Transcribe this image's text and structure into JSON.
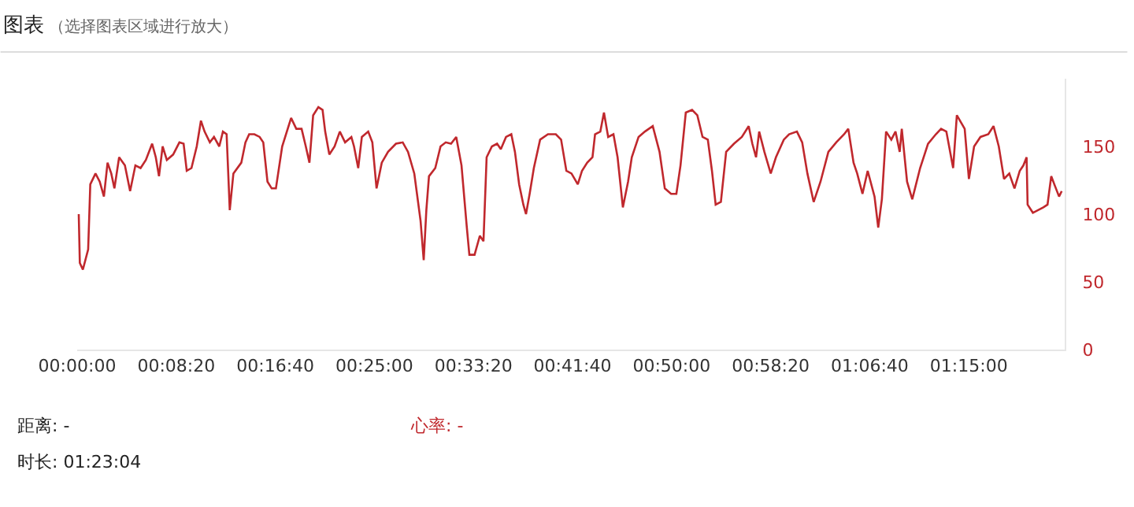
{
  "chart_data": {
    "type": "line",
    "title": "图表",
    "subtitle": "（选择图表区域进行放大）",
    "annotations": [
      "距离: -",
      "时长: 01:23:04",
      "心率: -"
    ],
    "xlim": [
      0,
      1.3844
    ],
    "ylim": [
      0,
      200
    ],
    "yticks": [
      0,
      50,
      100,
      150
    ],
    "xticks": [
      {
        "value": 0,
        "label": "00:00:00"
      },
      {
        "value": 0.1389,
        "label": "00:08:20"
      },
      {
        "value": 0.2778,
        "label": "00:16:40"
      },
      {
        "value": 0.4167,
        "label": "00:25:00"
      },
      {
        "value": 0.5556,
        "label": "00:33:20"
      },
      {
        "value": 0.6944,
        "label": "00:41:40"
      },
      {
        "value": 0.8333,
        "label": "00:50:00"
      },
      {
        "value": 0.9722,
        "label": "00:58:20"
      },
      {
        "value": 1.1111,
        "label": "01:06:40"
      },
      {
        "value": 1.25,
        "label": "01:15:00"
      }
    ],
    "grid": false,
    "marker": "none",
    "line_style": "solid",
    "series": [
      {
        "color": "#c0282d",
        "x": [
          0.0022,
          0.0037,
          0.008,
          0.0154,
          0.0184,
          0.0257,
          0.0316,
          0.0375,
          0.0426,
          0.0478,
          0.0522,
          0.0588,
          0.0669,
          0.0742,
          0.0816,
          0.0889,
          0.0963,
          0.1051,
          0.1102,
          0.1147,
          0.1198,
          0.1257,
          0.1345,
          0.1433,
          0.1492,
          0.1536,
          0.1602,
          0.1676,
          0.1735,
          0.1786,
          0.186,
          0.1918,
          0.1992,
          0.2043,
          0.2095,
          0.2139,
          0.219,
          0.2301,
          0.2359,
          0.2411,
          0.2484,
          0.2558,
          0.2609,
          0.2668,
          0.2727,
          0.2786,
          0.2874,
          0.2999,
          0.3072,
          0.3146,
          0.3205,
          0.3256,
          0.3308,
          0.3381,
          0.344,
          0.3477,
          0.3535,
          0.3609,
          0.3682,
          0.3756,
          0.3844,
          0.3881,
          0.394,
          0.3991,
          0.408,
          0.4138,
          0.4197,
          0.427,
          0.4358,
          0.4469,
          0.4564,
          0.4638,
          0.4726,
          0.4814,
          0.4858,
          0.4895,
          0.4932,
          0.502,
          0.5094,
          0.5167,
          0.5241,
          0.5314,
          0.5388,
          0.5461,
          0.5498,
          0.5571,
          0.5645,
          0.5696,
          0.574,
          0.5814,
          0.5887,
          0.5939,
          0.6012,
          0.6086,
          0.6137,
          0.6196,
          0.6255,
          0.6292,
          0.6343,
          0.6402,
          0.649,
          0.66,
          0.671,
          0.6784,
          0.6858,
          0.693,
          0.7018,
          0.7077,
          0.715,
          0.7224,
          0.726,
          0.7334,
          0.7385,
          0.7444,
          0.7518,
          0.7576,
          0.765,
          0.7723,
          0.7775,
          0.787,
          0.7959,
          0.8069,
          0.8164,
          0.8238,
          0.8326,
          0.84,
          0.8458,
          0.8532,
          0.862,
          0.8694,
          0.8767,
          0.8841,
          0.8899,
          0.8951,
          0.9024,
          0.9098,
          0.9208,
          0.9318,
          0.9414,
          0.9465,
          0.9517,
          0.9561,
          0.9634,
          0.9723,
          0.9796,
          0.9906,
          0.998,
          1.009,
          1.0164,
          1.0237,
          1.0325,
          1.0421,
          1.0531,
          1.0641,
          1.0752,
          1.081,
          1.0884,
          1.0935,
          1.1009,
          1.1082,
          1.1178,
          1.123,
          1.1281,
          1.134,
          1.1413,
          1.1472,
          1.1531,
          1.156,
          1.1634,
          1.1707,
          1.1817,
          1.1928,
          1.2038,
          1.2111,
          1.2185,
          1.228,
          1.2332,
          1.2442,
          1.2501,
          1.2574,
          1.2663,
          1.2773,
          1.2846,
          1.292,
          1.2993,
          1.3067,
          1.314,
          1.3214,
          1.3265,
          1.331,
          1.3324,
          1.3398,
          1.3471,
          1.3545,
          1.3603,
          1.3655,
          1.3706,
          1.3765,
          1.3802
        ],
        "values": [
          100,
          64,
          59,
          74,
          122,
          130,
          124,
          113,
          138,
          130,
          119,
          142,
          136,
          117,
          136,
          134,
          140,
          152,
          142,
          128,
          150,
          140,
          144,
          153,
          152,
          132,
          134,
          150,
          169,
          161,
          153,
          157,
          150,
          161,
          159,
          103,
          130,
          138,
          153,
          159,
          159,
          157,
          153,
          124,
          119,
          119,
          150,
          171,
          163,
          163,
          150,
          138,
          173,
          179,
          177,
          161,
          144,
          150,
          161,
          153,
          157,
          150,
          134,
          157,
          161,
          153,
          119,
          138,
          146,
          152,
          153,
          146,
          130,
          95,
          66,
          103,
          128,
          134,
          150,
          153,
          152,
          157,
          136,
          91,
          70,
          70,
          84,
          80,
          142,
          150,
          152,
          148,
          157,
          159,
          146,
          122,
          107,
          100,
          115,
          134,
          155,
          159,
          159,
          155,
          132,
          130,
          122,
          132,
          138,
          142,
          159,
          161,
          175,
          157,
          159,
          142,
          105,
          124,
          142,
          157,
          161,
          165,
          146,
          119,
          115,
          115,
          136,
          175,
          177,
          173,
          157,
          155,
          132,
          107,
          109,
          146,
          152,
          157,
          165,
          152,
          142,
          161,
          146,
          130,
          142,
          155,
          159,
          161,
          153,
          130,
          109,
          124,
          146,
          153,
          159,
          163,
          138,
          130,
          115,
          132,
          113,
          90,
          111,
          161,
          155,
          161,
          146,
          163,
          124,
          111,
          134,
          152,
          159,
          163,
          161,
          134,
          173,
          163,
          126,
          150,
          157,
          159,
          165,
          150,
          126,
          130,
          119,
          132,
          136,
          142,
          107,
          101,
          103,
          105,
          107,
          128,
          121,
          113,
          117
        ]
      }
    ]
  }
}
